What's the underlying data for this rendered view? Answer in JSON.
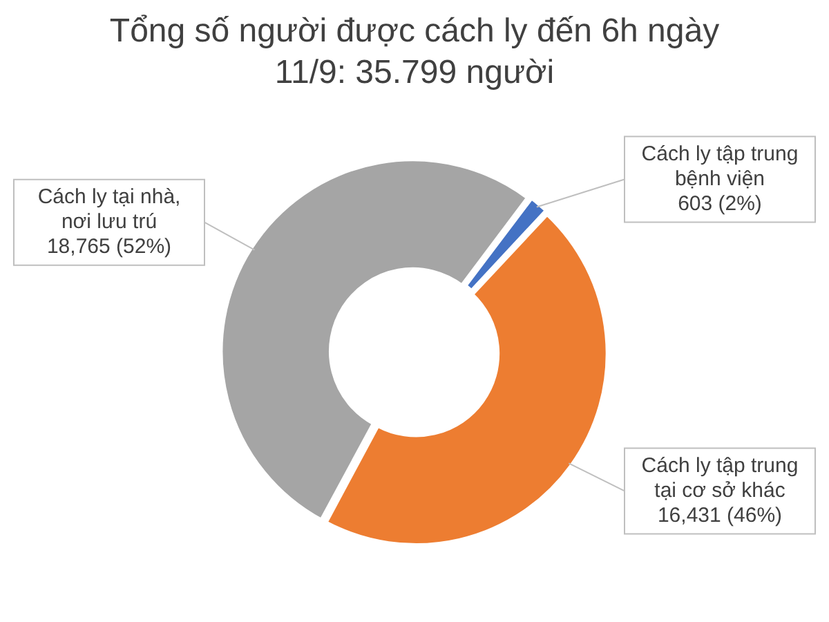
{
  "chart_data": {
    "type": "donut",
    "title": "Tổng số người được cách ly đến 6h ngày 11/9: 35.799 người",
    "categories": [
      "Cách ly tập trung bệnh viện",
      "Cách ly tập trung tại cơ sở khác",
      "Cách ly tại nhà, nơi lưu trú"
    ],
    "values": [
      603,
      16431,
      18765
    ],
    "colors": [
      "#4472c4",
      "#ed7d31",
      "#a5a5a5"
    ],
    "value_labels": [
      "603 (2%)",
      "16,431 (46%)",
      "18,765 (52%)"
    ],
    "legend": false
  }
}
